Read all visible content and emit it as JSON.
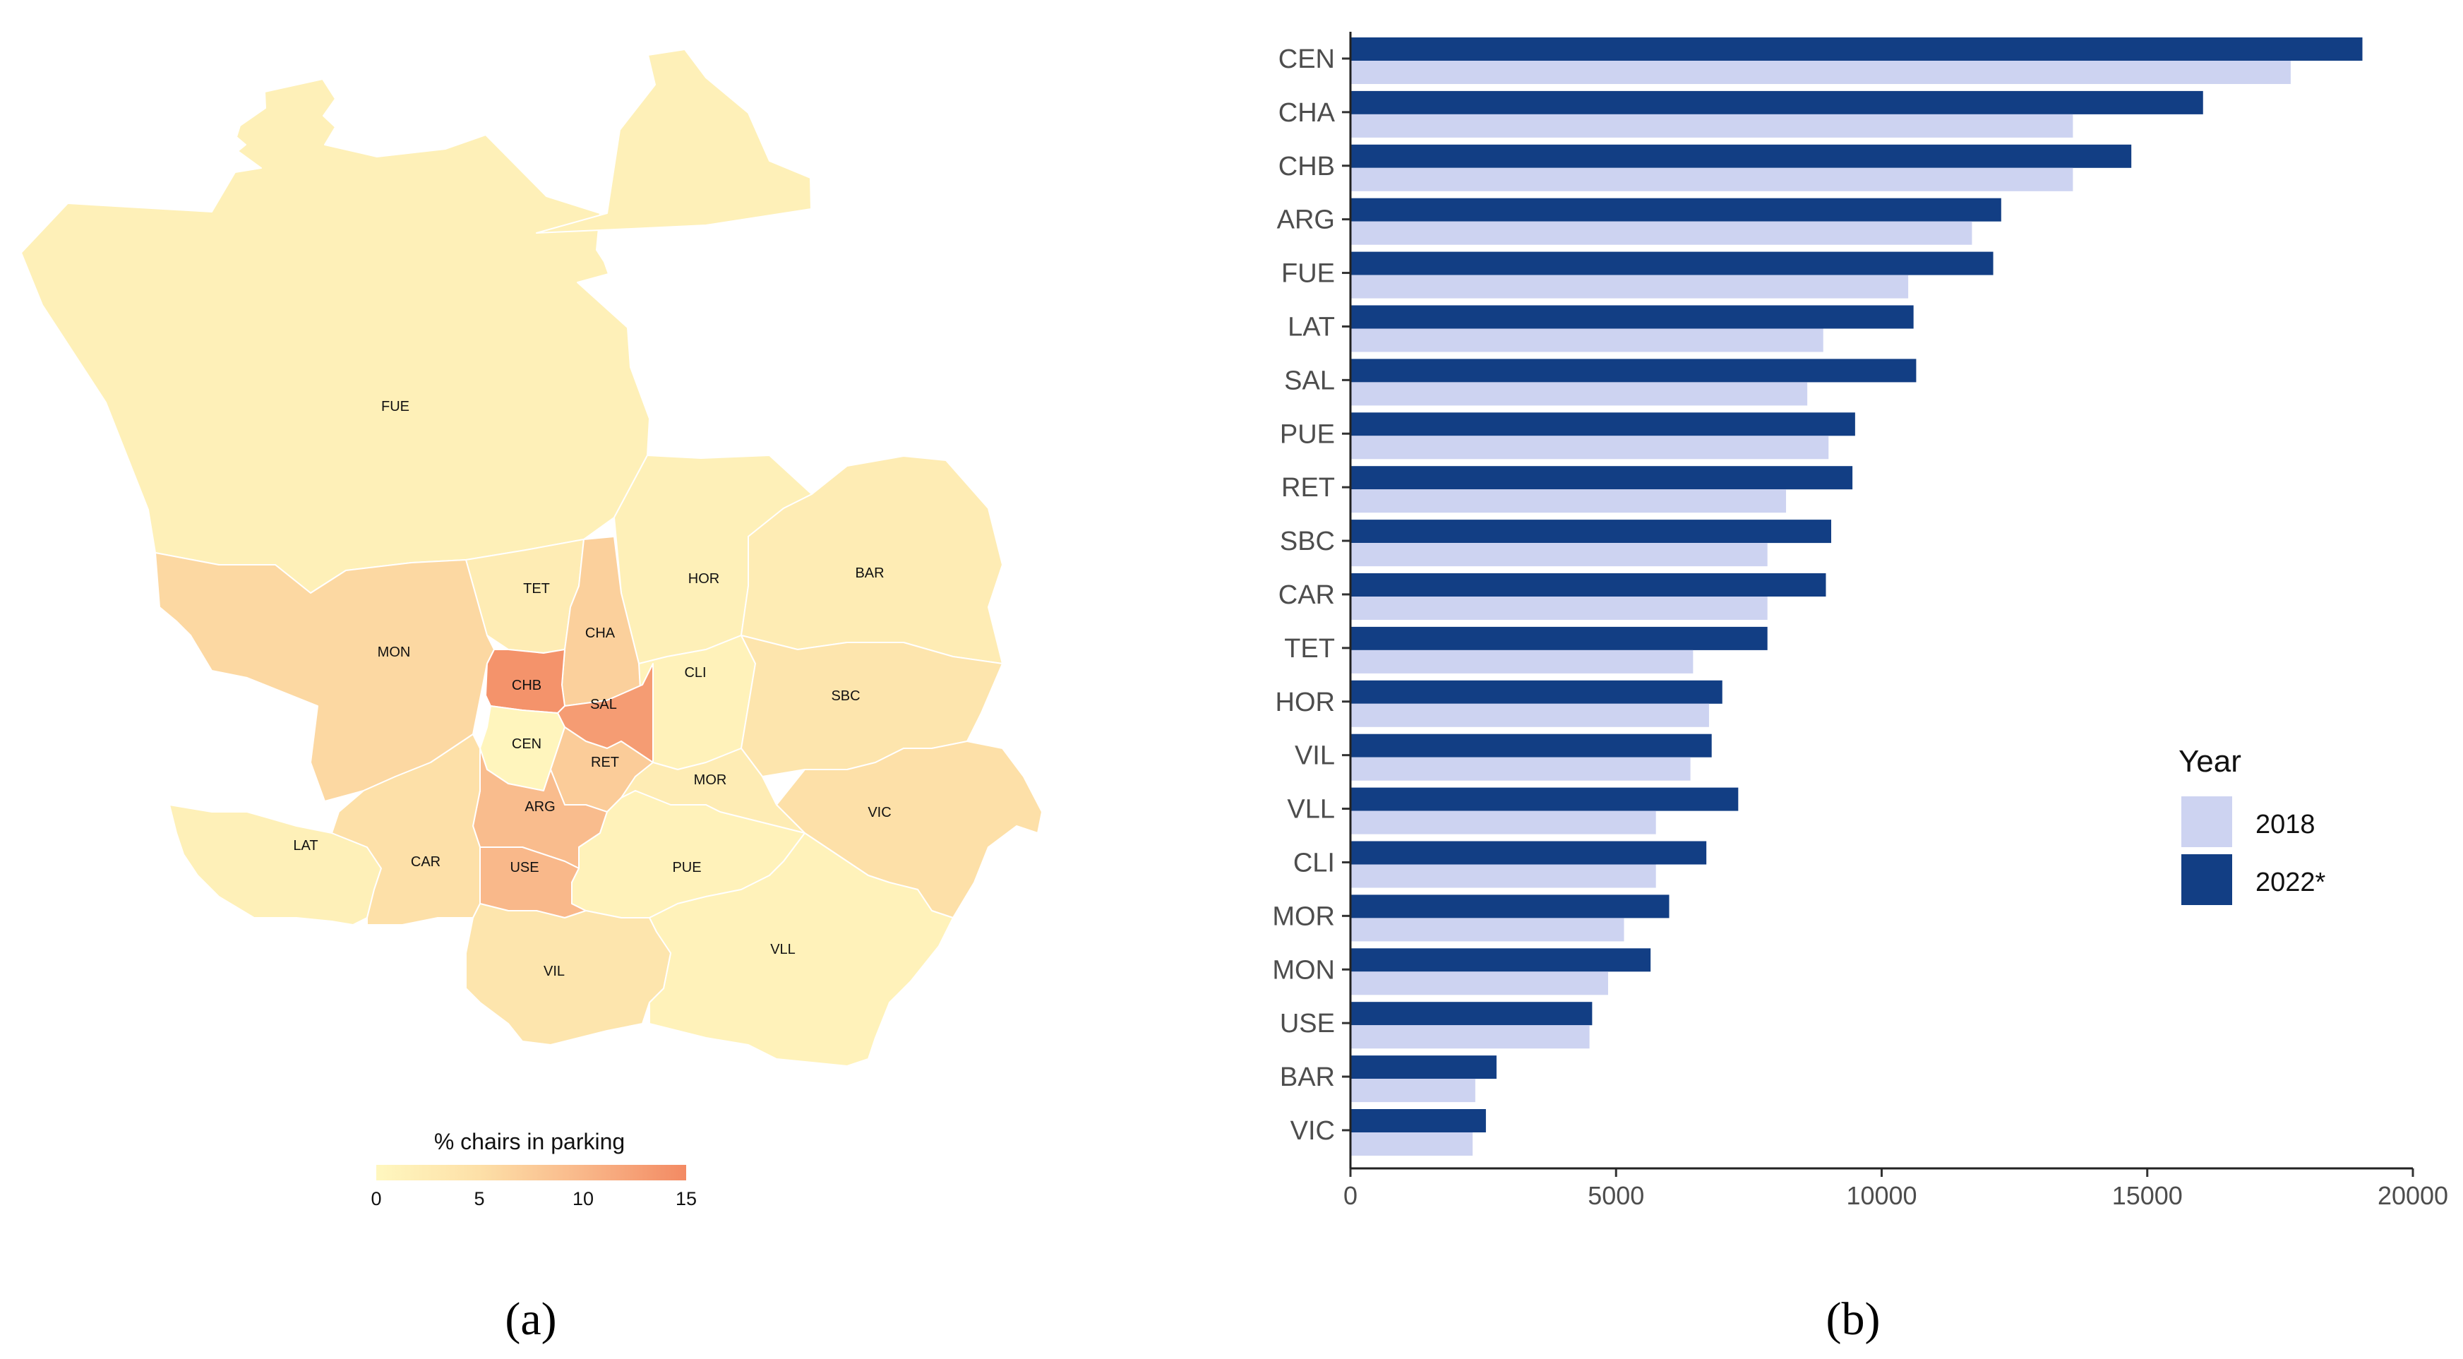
{
  "panel_a": {
    "caption": "(a)",
    "colorbar": {
      "title": "% chairs in parking",
      "ticks": [
        "0",
        "5",
        "10",
        "15"
      ],
      "colors": [
        "#fff7bf",
        "#fde0a8",
        "#f9b88a",
        "#f38a63"
      ]
    },
    "districts": [
      {
        "code": "FUE",
        "pct": 1.5
      },
      {
        "code": "TET",
        "pct": 2.5
      },
      {
        "code": "HOR",
        "pct": 1.5
      },
      {
        "code": "BAR",
        "pct": 2.5
      },
      {
        "code": "MON",
        "pct": 6.0
      },
      {
        "code": "CHA",
        "pct": 7.0
      },
      {
        "code": "CLI",
        "pct": 1.0
      },
      {
        "code": "SBC",
        "pct": 4.0
      },
      {
        "code": "CHB",
        "pct": 14.0
      },
      {
        "code": "SAL",
        "pct": 13.0
      },
      {
        "code": "CEN",
        "pct": 0.5
      },
      {
        "code": "RET",
        "pct": 7.5
      },
      {
        "code": "MOR",
        "pct": 2.5
      },
      {
        "code": "VIC",
        "pct": 5.0
      },
      {
        "code": "ARG",
        "pct": 9.5
      },
      {
        "code": "LAT",
        "pct": 1.5
      },
      {
        "code": "CAR",
        "pct": 5.0
      },
      {
        "code": "USE",
        "pct": 10.0
      },
      {
        "code": "PUE",
        "pct": 1.0
      },
      {
        "code": "VLL",
        "pct": 1.0
      },
      {
        "code": "VIL",
        "pct": 4.0
      }
    ]
  },
  "panel_b": {
    "caption": "(b)",
    "colors": {
      "y2018": "#cdd3f1",
      "y2022": "#123e84"
    },
    "chart_data": {
      "type": "bar",
      "orientation": "horizontal",
      "categories": [
        "CEN",
        "CHA",
        "CHB",
        "ARG",
        "FUE",
        "LAT",
        "SAL",
        "PUE",
        "RET",
        "SBC",
        "CAR",
        "TET",
        "HOR",
        "VIL",
        "VLL",
        "CLI",
        "MOR",
        "MON",
        "USE",
        "BAR",
        "VIC"
      ],
      "series": [
        {
          "name": "2018",
          "values": [
            17700,
            13600,
            13600,
            11700,
            10500,
            8900,
            8600,
            9000,
            8200,
            7850,
            7850,
            6450,
            6750,
            6400,
            5750,
            5750,
            5150,
            4850,
            4500,
            2350,
            2300
          ]
        },
        {
          "name": "2022*",
          "values": [
            19050,
            16050,
            14700,
            12250,
            12100,
            10600,
            10650,
            9500,
            9450,
            9050,
            8950,
            7850,
            7000,
            6800,
            7300,
            6700,
            6000,
            5650,
            4550,
            2750,
            2550
          ]
        }
      ],
      "xlim": [
        0,
        20000
      ],
      "xticks": [
        "0",
        "5000",
        "10000",
        "15000",
        "20000"
      ],
      "legend": {
        "title": "Year",
        "entries": [
          "2018",
          "2022*"
        ],
        "position": "right"
      },
      "title": "",
      "xlabel": "",
      "ylabel": ""
    }
  }
}
